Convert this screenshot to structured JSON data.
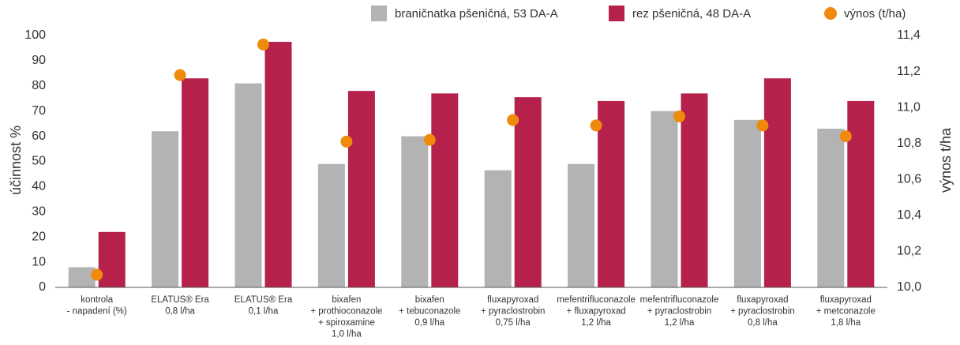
{
  "chart_data": {
    "type": "bar",
    "categories": [
      [
        "kontrola",
        "- napadení (%)"
      ],
      [
        "ELATUS® Era",
        "0,8 l/ha"
      ],
      [
        "ELATUS® Era",
        "0,1 l/ha"
      ],
      [
        "bixafen",
        "+ prothioconazole",
        "+ spiroxamine",
        "1,0 l/ha"
      ],
      [
        "bixafen",
        "+ tebuconazole",
        "0,9 l/ha"
      ],
      [
        "fluxapyroxad",
        "+ pyraclostrobin",
        "0,75 l/ha"
      ],
      [
        "mefentrifluconazole",
        "+ fluxapyroxad",
        "1,2 l/ha"
      ],
      [
        "mefentrifluconazole",
        "+ pyraclostrobin",
        "1,2 l/ha"
      ],
      [
        "fluxapyroxad",
        "+ pyraclostrobin",
        "0,8 l/ha"
      ],
      [
        "fluxapyroxad",
        "+ metconazole",
        "1,8 l/ha"
      ]
    ],
    "series": [
      {
        "name": "braničnatka pšeničná, 53 DA-A",
        "type": "bar",
        "axis": "left",
        "color": "#b3b3b3",
        "values": [
          8,
          62,
          81,
          49,
          60,
          46.5,
          49,
          70,
          66.5,
          63
        ]
      },
      {
        "name": "rez pšeničná, 48 DA-A",
        "type": "bar",
        "axis": "left",
        "color": "#b5214b",
        "values": [
          22,
          83,
          97.5,
          78,
          77,
          75.5,
          74,
          77,
          83,
          74
        ]
      },
      {
        "name": "výnos (t/ha)",
        "type": "scatter",
        "axis": "right",
        "color": "#f08a0c",
        "values": [
          10.07,
          11.18,
          11.35,
          10.81,
          10.82,
          10.93,
          10.9,
          10.95,
          10.9,
          10.84
        ]
      }
    ],
    "ylabel": "účinnost %",
    "y2label": "výnos t/ha",
    "ylim": [
      0,
      100
    ],
    "yticks": [
      "0",
      "10",
      "20",
      "30",
      "40",
      "50",
      "60",
      "70",
      "80",
      "90",
      "100"
    ],
    "y2lim": [
      10.0,
      11.4
    ],
    "y2ticks": [
      "10,0",
      "10,2",
      "10,4",
      "10,6",
      "10,8",
      "11,0",
      "11,2",
      "11,4"
    ],
    "legend_position": "top-right",
    "grid": false
  }
}
